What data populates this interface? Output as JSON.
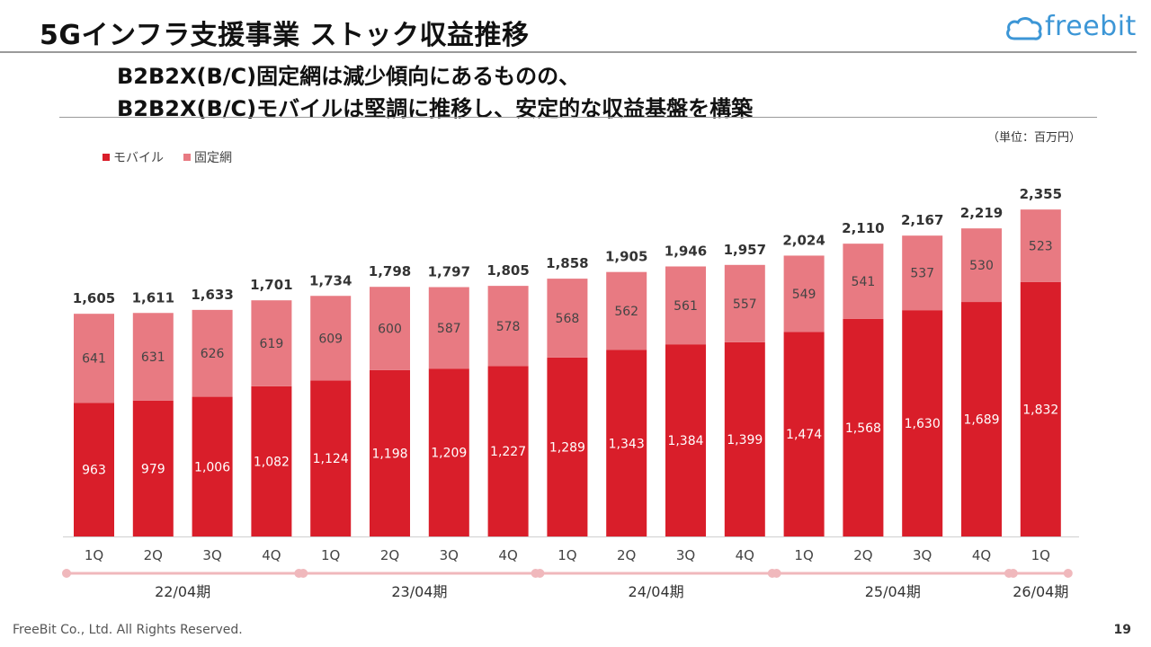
{
  "header": {
    "title": "5Gインフラ支援事業 ストック収益推移",
    "logo_text": "freebit",
    "subtitle_line1": "B2B2X(B/C)固定網は減少傾向にあるものの、",
    "subtitle_line2": "B2B2X(B/C)モバイルは堅調に推移し、安定的な収益基盤を構築"
  },
  "unit_label": "（単位：百万円）",
  "footer": {
    "copyright": "FreeBit Co., Ltd. All Rights Reserved.",
    "page": "19"
  },
  "colors": {
    "mobile": "#d91e2a",
    "fixed": "#e87a82",
    "period_line": "#f0b8bc"
  },
  "chart_data": {
    "type": "bar",
    "stacked": true,
    "categories": [
      "1Q",
      "2Q",
      "3Q",
      "4Q",
      "1Q",
      "2Q",
      "3Q",
      "4Q",
      "1Q",
      "2Q",
      "3Q",
      "4Q",
      "1Q",
      "2Q",
      "3Q",
      "4Q",
      "1Q"
    ],
    "series": [
      {
        "name": "モバイル",
        "values": [
          963,
          979,
          1006,
          1082,
          1124,
          1198,
          1209,
          1227,
          1289,
          1343,
          1384,
          1399,
          1474,
          1568,
          1630,
          1689,
          1832
        ]
      },
      {
        "name": "固定網",
        "values": [
          641,
          631,
          626,
          619,
          609,
          600,
          587,
          578,
          568,
          562,
          561,
          557,
          549,
          541,
          537,
          530,
          523
        ]
      }
    ],
    "totals": [
      1605,
      1611,
      1633,
      1701,
      1734,
      1798,
      1797,
      1805,
      1858,
      1905,
      1946,
      1957,
      2024,
      2110,
      2167,
      2219,
      2355
    ],
    "value_labels": {
      "mobile": [
        "963",
        "979",
        "1,006",
        "1,082",
        "1,124",
        "1,198",
        "1,209",
        "1,227",
        "1,289",
        "1,343",
        "1,384",
        "1,399",
        "1,474",
        "1,568",
        "1,630",
        "1,689",
        "1,832"
      ],
      "fixed": [
        "641",
        "631",
        "626",
        "619",
        "609",
        "600",
        "587",
        "578",
        "568",
        "562",
        "561",
        "557",
        "549",
        "541",
        "537",
        "530",
        "523"
      ],
      "totals": [
        "1,605",
        "1,611",
        "1,633",
        "1,701",
        "1,734",
        "1,798",
        "1,797",
        "1,805",
        "1,858",
        "1,905",
        "1,946",
        "1,957",
        "2,024",
        "2,110",
        "2,167",
        "2,219",
        "2,355"
      ]
    },
    "periods": [
      {
        "label": "22/04期",
        "start": 0,
        "end": 3
      },
      {
        "label": "23/04期",
        "start": 4,
        "end": 7
      },
      {
        "label": "24/04期",
        "start": 8,
        "end": 11
      },
      {
        "label": "25/04期",
        "start": 12,
        "end": 15
      },
      {
        "label": "26/04期",
        "start": 16,
        "end": 16
      }
    ],
    "legend_position": "top-left",
    "grid": false,
    "ylim": [
      0,
      2400
    ]
  }
}
